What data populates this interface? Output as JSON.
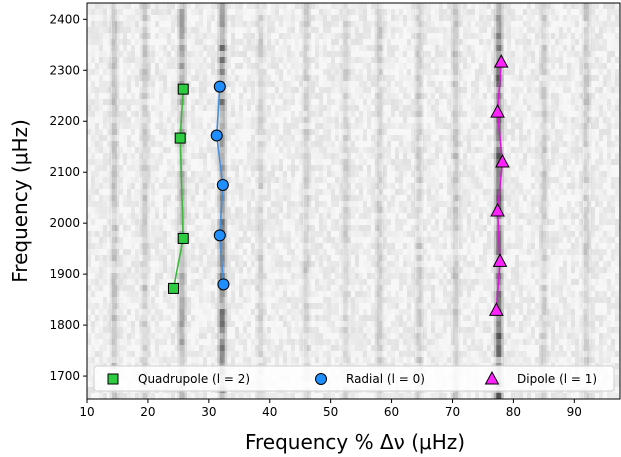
{
  "chart_data": {
    "type": "scatter",
    "xlabel": "Frequency % Δν (μHz)",
    "ylabel": "Frequency (μHz)",
    "xlim": [
      10,
      97.5
    ],
    "ylim": [
      1655,
      2432
    ],
    "xticks": [
      10,
      20,
      30,
      40,
      50,
      60,
      70,
      80,
      90
    ],
    "yticks": [
      1700,
      1800,
      1900,
      2000,
      2100,
      2200,
      2300,
      2400
    ],
    "background": "grayscale echelle diagram with vertical ridges",
    "legend_position": "bottom",
    "series": [
      {
        "name": "Quadrupole (l = 2)",
        "marker": "square",
        "color": "#2ecc40",
        "line_color": "#3cb83c",
        "points": [
          [
            24.2,
            1872
          ],
          [
            25.8,
            1970
          ],
          [
            25.3,
            2167
          ],
          [
            25.8,
            2263
          ]
        ]
      },
      {
        "name": "Radial (l = 0)",
        "marker": "circle",
        "color": "#1f8fff",
        "line_color": "#4a90d9",
        "points": [
          [
            32.4,
            1880
          ],
          [
            31.8,
            1976
          ],
          [
            32.3,
            2075
          ],
          [
            31.3,
            2172
          ],
          [
            31.8,
            2268
          ]
        ]
      },
      {
        "name": "Dipole (l = 1)",
        "marker": "triangle",
        "color": "#ff22ff",
        "line_color": "#d81ad8",
        "points": [
          [
            77.2,
            1829
          ],
          [
            77.8,
            1925
          ],
          [
            77.4,
            2024
          ],
          [
            78.2,
            2120
          ],
          [
            77.4,
            2218
          ],
          [
            78.0,
            2316
          ]
        ]
      }
    ],
    "ridges": [
      {
        "x": 25.6,
        "strength": 0.28
      },
      {
        "x": 32.2,
        "strength": 0.45
      },
      {
        "x": 77.6,
        "strength": 0.55
      },
      {
        "x": 14.5,
        "strength": 0.18
      },
      {
        "x": 19.5,
        "strength": 0.16
      },
      {
        "x": 38.5,
        "strength": 0.12
      },
      {
        "x": 46.0,
        "strength": 0.14
      },
      {
        "x": 52.5,
        "strength": 0.12
      },
      {
        "x": 58.0,
        "strength": 0.13
      },
      {
        "x": 64.5,
        "strength": 0.15
      },
      {
        "x": 70.5,
        "strength": 0.17
      },
      {
        "x": 85.0,
        "strength": 0.14
      },
      {
        "x": 92.0,
        "strength": 0.15
      }
    ]
  }
}
